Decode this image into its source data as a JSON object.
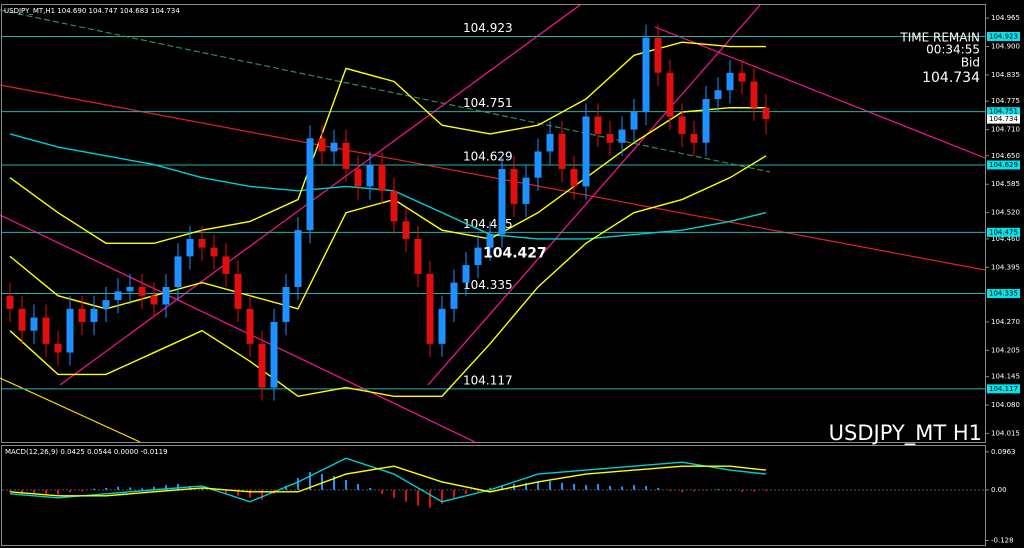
{
  "chart_data": [
    {
      "type": "candlestick",
      "header": "USDJPY_MT,H1 104.690 104.747 104.683 104.734",
      "watermark": "USDJPY_MT H1",
      "timer": {
        "title": "TIME REMAIN",
        "time": "00:34:55",
        "label": "Bid",
        "price": 104.734
      },
      "price_label": 104.427,
      "ylim": [
        104.0,
        104.995
      ],
      "yticks": [
        104.965,
        {
          "value": 104.9,
          "label": "104.900"
        },
        104.835,
        104.775,
        {
          "value": 104.71,
          "label": "104.710"
        },
        {
          "value": 104.65,
          "label": "104.650"
        },
        104.585,
        {
          "value": 104.52,
          "label": "104.520"
        },
        {
          "value": 104.46,
          "label": "104.460"
        },
        104.395,
        {
          "value": 104.27,
          "label": "104.270"
        },
        104.205,
        104.145,
        {
          "value": 104.08,
          "label": "104.080"
        },
        104.015
      ],
      "levels": [
        104.923,
        104.751,
        104.629,
        104.475,
        104.335,
        104.117
      ],
      "level_color": "#20b2aa",
      "up_color": "#1e90ff",
      "down_color": "#e01010",
      "open": [
        104.33,
        104.3,
        104.25,
        104.28,
        104.22,
        104.2,
        104.3,
        104.27,
        104.3,
        104.32,
        104.34,
        104.35,
        104.33,
        104.31,
        104.35,
        104.42,
        104.46,
        104.44,
        104.42,
        104.38,
        104.3,
        104.22,
        104.12,
        104.27,
        104.35,
        104.48,
        104.69,
        104.66,
        104.68,
        104.62,
        104.58,
        104.63,
        104.57,
        104.5,
        104.46,
        104.38,
        104.22,
        104.3,
        104.36,
        104.4,
        104.44,
        104.47,
        104.62,
        104.54,
        104.6,
        104.66,
        104.7,
        104.62,
        104.58,
        104.74,
        104.7,
        104.68,
        104.71,
        104.75,
        104.92,
        104.84,
        104.74,
        104.7,
        104.68,
        104.78,
        104.8,
        104.84,
        104.82,
        104.76
      ],
      "high": [
        104.36,
        104.33,
        104.31,
        104.31,
        104.25,
        104.33,
        104.33,
        104.33,
        104.35,
        104.37,
        104.38,
        104.38,
        104.36,
        104.38,
        104.45,
        104.49,
        104.49,
        104.47,
        104.45,
        104.41,
        104.33,
        104.25,
        104.3,
        104.38,
        104.51,
        104.72,
        104.72,
        104.71,
        104.71,
        104.65,
        104.66,
        104.66,
        104.6,
        104.53,
        104.49,
        104.41,
        104.33,
        104.39,
        104.43,
        104.47,
        104.5,
        104.65,
        104.65,
        104.63,
        104.69,
        104.73,
        104.73,
        104.65,
        104.77,
        104.77,
        104.73,
        104.74,
        104.78,
        104.95,
        104.95,
        104.87,
        104.77,
        104.73,
        104.81,
        104.83,
        104.87,
        104.87,
        104.85,
        104.79
      ],
      "low": [
        104.27,
        104.22,
        104.22,
        104.19,
        104.17,
        104.17,
        104.24,
        104.24,
        104.27,
        104.29,
        104.31,
        104.3,
        104.28,
        104.28,
        104.32,
        104.39,
        104.41,
        104.39,
        104.35,
        104.27,
        104.19,
        104.09,
        104.09,
        104.24,
        104.32,
        104.45,
        104.63,
        104.63,
        104.59,
        104.55,
        104.55,
        104.54,
        104.47,
        104.43,
        104.35,
        104.19,
        104.19,
        104.27,
        104.33,
        104.37,
        104.41,
        104.44,
        104.51,
        104.51,
        104.57,
        104.63,
        104.59,
        104.55,
        104.55,
        104.67,
        104.65,
        104.65,
        104.68,
        104.72,
        104.81,
        104.71,
        104.67,
        104.65,
        104.65,
        104.75,
        104.77,
        104.79,
        104.73,
        104.7
      ],
      "close": [
        104.3,
        104.25,
        104.28,
        104.22,
        104.2,
        104.3,
        104.27,
        104.3,
        104.32,
        104.34,
        104.35,
        104.33,
        104.31,
        104.35,
        104.42,
        104.46,
        104.44,
        104.42,
        104.38,
        104.3,
        104.22,
        104.12,
        104.27,
        104.35,
        104.48,
        104.69,
        104.66,
        104.68,
        104.62,
        104.58,
        104.63,
        104.57,
        104.5,
        104.46,
        104.38,
        104.22,
        104.3,
        104.36,
        104.4,
        104.44,
        104.47,
        104.62,
        104.54,
        104.6,
        104.66,
        104.7,
        104.62,
        104.58,
        104.74,
        104.7,
        104.68,
        104.71,
        104.75,
        104.92,
        104.84,
        104.74,
        104.7,
        104.68,
        104.78,
        104.8,
        104.84,
        104.82,
        104.76,
        104.734
      ],
      "indicators": [
        {
          "color": "#00ced1",
          "x": [
            0,
            4,
            8,
            12,
            16,
            20,
            24,
            28,
            32,
            36,
            40,
            44,
            48,
            52,
            56,
            60,
            63
          ],
          "values": [
            104.7,
            104.67,
            104.65,
            104.63,
            104.6,
            104.58,
            104.57,
            104.58,
            104.57,
            104.52,
            104.47,
            104.46,
            104.46,
            104.47,
            104.48,
            104.5,
            104.52
          ]
        },
        {
          "color": "#ffff00",
          "x": [
            0,
            4,
            8,
            12,
            16,
            20,
            24,
            28,
            32,
            36,
            40,
            44,
            48,
            52,
            56,
            60,
            63
          ],
          "values": [
            104.6,
            104.52,
            104.45,
            104.45,
            104.48,
            104.5,
            104.55,
            104.85,
            104.82,
            104.72,
            104.7,
            104.72,
            104.78,
            104.88,
            104.91,
            104.9,
            104.9
          ]
        },
        {
          "color": "#ffff00",
          "x": [
            0,
            4,
            8,
            12,
            16,
            20,
            24,
            28,
            32,
            36,
            40,
            44,
            48,
            52,
            56,
            60,
            63
          ],
          "values": [
            104.42,
            104.33,
            104.3,
            104.33,
            104.36,
            104.33,
            104.3,
            104.52,
            104.55,
            104.48,
            104.46,
            104.52,
            104.6,
            104.68,
            104.75,
            104.76,
            104.76
          ]
        },
        {
          "color": "#ffff00",
          "x": [
            0,
            4,
            8,
            12,
            16,
            20,
            24,
            28,
            32,
            36,
            40,
            44,
            48,
            52,
            56,
            60,
            63
          ],
          "values": [
            104.25,
            104.15,
            104.15,
            104.2,
            104.25,
            104.18,
            104.1,
            104.12,
            104.1,
            104.1,
            104.22,
            104.35,
            104.45,
            104.52,
            104.55,
            104.6,
            104.65
          ]
        }
      ]
    },
    {
      "type": "macd",
      "title": "MACD(12,26,9) 0.0425 0.0544 0.0000 -0.0119",
      "ylim": [
        -0.142,
        0.111
      ],
      "yticks": [
        0.0963,
        {
          "value": 0,
          "label": "0.00"
        },
        -0.128
      ],
      "up_color": "#1e90ff",
      "down_color": "#e01010",
      "values": [
        -0.005,
        -0.01,
        -0.008,
        -0.01,
        -0.012,
        -0.006,
        -0.004,
        0.003,
        0.005,
        0.008,
        0.006,
        0.004,
        0.008,
        0.012,
        0.015,
        0.01,
        0.005,
        -0.004,
        -0.01,
        -0.015,
        -0.02,
        -0.025,
        -0.01,
        0.01,
        0.03,
        0.045,
        0.04,
        0.035,
        0.025,
        0.015,
        0.005,
        -0.01,
        -0.02,
        -0.03,
        -0.04,
        -0.045,
        -0.035,
        -0.02,
        -0.01,
        -0.005,
        0.005,
        0.012,
        0.015,
        0.018,
        0.02,
        0.022,
        0.018,
        0.015,
        0.012,
        0.015,
        0.01,
        0.008,
        0.012,
        0.01,
        0.005,
        -0.003,
        -0.006,
        -0.004,
        -0.002,
        0.002,
        -0.003,
        -0.005,
        -0.004,
        -0.003
      ],
      "series": [
        {
          "color": "#00ced1",
          "x": [
            0,
            4,
            8,
            12,
            16,
            20,
            24,
            28,
            32,
            36,
            40,
            44,
            48,
            52,
            56,
            60,
            63
          ],
          "values": [
            -0.01,
            -0.02,
            -0.01,
            0.0,
            0.01,
            -0.03,
            0.02,
            0.08,
            0.04,
            -0.03,
            0.0,
            0.04,
            0.05,
            0.06,
            0.07,
            0.05,
            0.04
          ]
        },
        {
          "color": "#ffff00",
          "x": [
            0,
            4,
            8,
            12,
            16,
            20,
            24,
            28,
            32,
            36,
            40,
            44,
            48,
            52,
            56,
            60,
            63
          ],
          "values": [
            -0.005,
            -0.015,
            -0.015,
            -0.005,
            0.005,
            -0.005,
            -0.005,
            0.04,
            0.06,
            0.02,
            -0.005,
            0.02,
            0.04,
            0.05,
            0.06,
            0.06,
            0.05
          ]
        }
      ]
    }
  ]
}
